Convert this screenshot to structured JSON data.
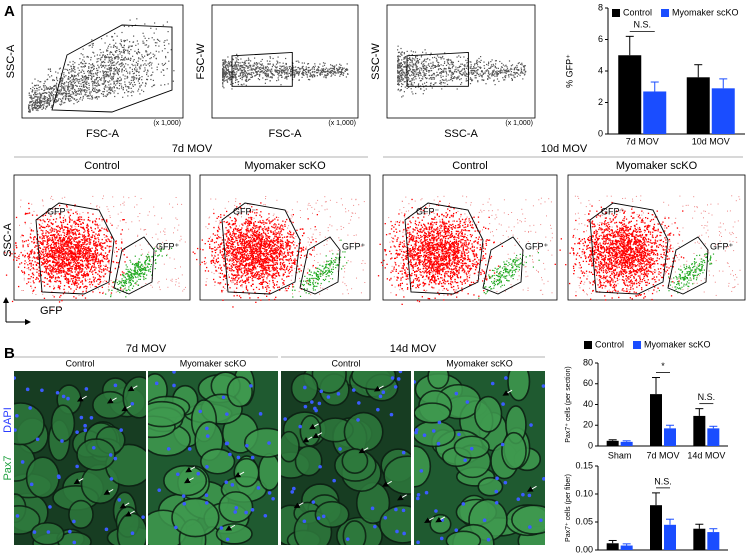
{
  "panel_labels": [
    "A",
    "B"
  ],
  "gating_plots": [
    {
      "x_label": "FSC-A",
      "y_label": "SSC-A",
      "scale_note": "(x 1,000)"
    },
    {
      "x_label": "FSC-A",
      "y_label": "FSC-W",
      "scale_note": "(x 1,000)"
    },
    {
      "x_label": "SSC-A",
      "y_label": "SSC-W",
      "scale_note": "(x 1,000)"
    }
  ],
  "gfp_plots": {
    "groups": [
      {
        "title": "7d MOV",
        "columns": [
          "Control",
          "Myomaker scKO"
        ]
      },
      {
        "title": "10d MOV",
        "columns": [
          "Control",
          "Myomaker scKO"
        ]
      }
    ],
    "neg_label": "GFP⁻",
    "pos_label": "GFP⁺",
    "y_label": "SSC-A",
    "x_label": "GFP"
  },
  "micrographs": {
    "groups": [
      {
        "title": "7d MOV",
        "columns": [
          "Control",
          "Myomaker scKO"
        ]
      },
      {
        "title": "14d MOV",
        "columns": [
          "Control",
          "Myomaker scKO"
        ]
      }
    ],
    "stain_labels": [
      "Pax7",
      "DAPI"
    ]
  },
  "chart_data": [
    {
      "type": "bar",
      "y_label": "% GFP⁺",
      "categories": [
        "7d MOV",
        "10d MOV"
      ],
      "series": [
        {
          "name": "Control",
          "color": "#000000",
          "values": [
            5.0,
            3.6
          ],
          "errors": [
            1.2,
            0.8
          ]
        },
        {
          "name": "Myomaker scKO",
          "color": "#1a4dff",
          "values": [
            2.7,
            2.9
          ],
          "errors": [
            0.6,
            0.6
          ]
        }
      ],
      "annotations": [
        "N.S."
      ],
      "ylim": [
        0,
        8
      ],
      "yticks": [
        0,
        2,
        4,
        6,
        8
      ]
    },
    {
      "type": "bar",
      "y_label": "Pax7⁺ cells (per section)",
      "categories": [
        "Sham",
        "7d MOV",
        "14d MOV"
      ],
      "series": [
        {
          "name": "Control",
          "color": "#000000",
          "values": [
            5,
            50,
            29
          ],
          "errors": [
            1,
            16,
            7
          ]
        },
        {
          "name": "Myomaker scKO",
          "color": "#1a4dff",
          "values": [
            4,
            17,
            17
          ],
          "errors": [
            1,
            3,
            2
          ]
        }
      ],
      "annotations": [
        "*",
        "N.S."
      ],
      "ylim": [
        0,
        80
      ],
      "yticks": [
        0,
        20,
        40,
        60,
        80
      ]
    },
    {
      "type": "bar",
      "y_label": "Pax7⁺ cells (per fiber)",
      "series": [
        {
          "color": "#000000",
          "values": [
            0.012,
            0.08,
            0.038
          ],
          "errors": [
            0.005,
            0.022,
            0.008
          ]
        },
        {
          "color": "#1a4dff",
          "values": [
            0.008,
            0.045,
            0.032
          ],
          "errors": [
            0.003,
            0.01,
            0.006
          ]
        }
      ],
      "annotations": [
        "N.S."
      ],
      "ylim": [
        0,
        0.15
      ],
      "yticks": [
        {
          "value": 0,
          "label": "0.00"
        },
        {
          "value": 0.05,
          "label": "0.05"
        },
        {
          "value": 0.1,
          "label": "0.10"
        },
        {
          "value": 0.15,
          "label": "0.15"
        }
      ]
    }
  ]
}
